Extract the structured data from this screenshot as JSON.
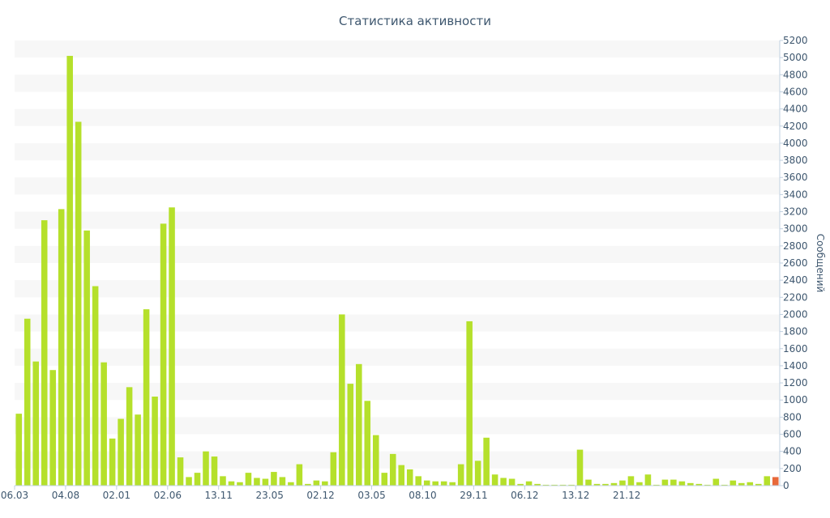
{
  "colors": {
    "bar": "#b5e02b",
    "last_bar": "#e8693a",
    "axis_text": "#3e576f",
    "band": "#f7f7f7",
    "axis_line": "#c0d0e0"
  },
  "chart_data": {
    "type": "bar",
    "title": "Статистика активности",
    "ylabel": "Сообщений",
    "xlabel": "",
    "ylim": [
      0,
      5200
    ],
    "ytick_step": 200,
    "y_axis_side": "right",
    "grid": "alternating horizontal bands",
    "legend": "none",
    "x_tick_labels": [
      {
        "index": 0,
        "label": "06.03"
      },
      {
        "index": 6,
        "label": "04.08"
      },
      {
        "index": 12,
        "label": "02.01"
      },
      {
        "index": 18,
        "label": "02.06"
      },
      {
        "index": 24,
        "label": "13.11"
      },
      {
        "index": 30,
        "label": "23.05"
      },
      {
        "index": 36,
        "label": "02.12"
      },
      {
        "index": 42,
        "label": "03.05"
      },
      {
        "index": 48,
        "label": "08.10"
      },
      {
        "index": 54,
        "label": "29.11"
      },
      {
        "index": 60,
        "label": "06.12"
      },
      {
        "index": 66,
        "label": "13.12"
      },
      {
        "index": 72,
        "label": "21.12"
      }
    ],
    "values": [
      840,
      1950,
      1450,
      3100,
      1350,
      3230,
      5020,
      4250,
      2980,
      2330,
      1440,
      550,
      780,
      1150,
      830,
      2060,
      1040,
      3060,
      3250,
      330,
      100,
      150,
      400,
      340,
      110,
      50,
      40,
      150,
      90,
      80,
      160,
      100,
      40,
      250,
      20,
      60,
      50,
      390,
      2000,
      1190,
      1420,
      990,
      590,
      150,
      370,
      240,
      190,
      110,
      60,
      50,
      50,
      40,
      250,
      1920,
      290,
      560,
      130,
      90,
      80,
      20,
      50,
      20,
      10,
      10,
      10,
      10,
      420,
      70,
      20,
      20,
      30,
      60,
      110,
      40,
      130,
      10,
      70,
      70,
      50,
      30,
      20,
      10,
      80,
      10,
      60,
      30,
      40,
      20,
      110,
      100
    ]
  }
}
